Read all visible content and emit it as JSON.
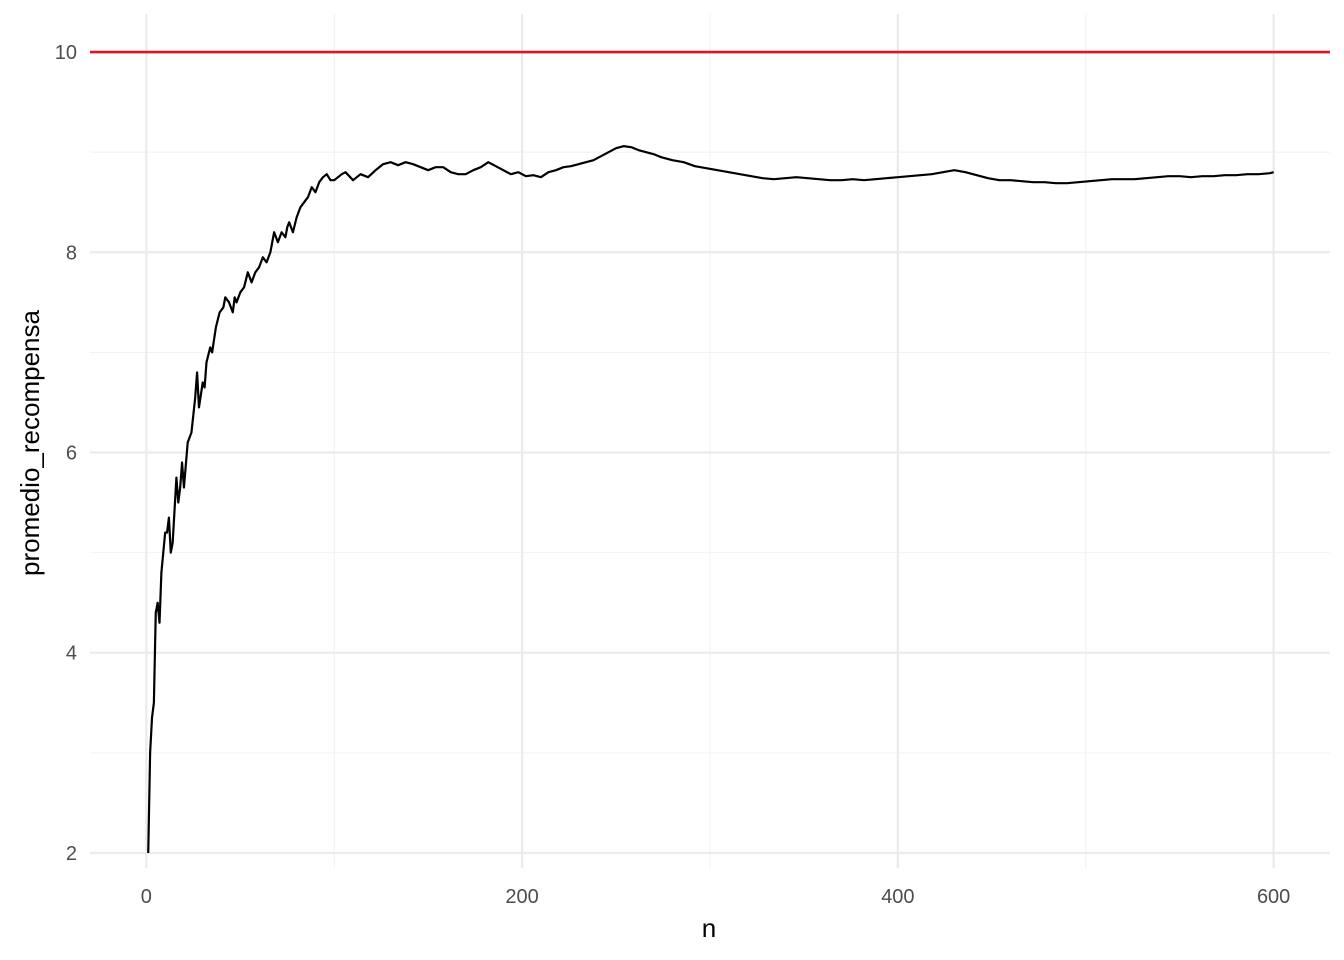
{
  "chart_data": {
    "type": "line",
    "title": "",
    "xlabel": "n",
    "ylabel": "promedio_recompensa",
    "xlim": [
      -30,
      630
    ],
    "ylim": [
      1.85,
      10.38
    ],
    "x_ticks": [
      0,
      200,
      400,
      600
    ],
    "x_tick_labels": [
      "0",
      "200",
      "400",
      "600"
    ],
    "y_ticks": [
      2,
      4,
      6,
      8,
      10
    ],
    "y_tick_labels": [
      "2",
      "4",
      "6",
      "8",
      "10"
    ],
    "grid": true,
    "legend": "none",
    "reference_line": {
      "orientation": "horizontal",
      "y": 10,
      "color": "#e0141e"
    },
    "series": [
      {
        "color": "#000000",
        "x": [
          1,
          2,
          3,
          4,
          5,
          6,
          7,
          8,
          9,
          10,
          11,
          12,
          13,
          14,
          16,
          17,
          18,
          19,
          20,
          22,
          24,
          26,
          27,
          28,
          30,
          31,
          32,
          34,
          35,
          37,
          39,
          41,
          42,
          44,
          46,
          47,
          48,
          50,
          52,
          54,
          56,
          58,
          60,
          62,
          64,
          66,
          68,
          70,
          72,
          74,
          75,
          76,
          78,
          80,
          82,
          84,
          86,
          88,
          90,
          92,
          94,
          96,
          98,
          100,
          104,
          106,
          110,
          114,
          118,
          122,
          126,
          130,
          134,
          138,
          142,
          146,
          150,
          154,
          158,
          162,
          166,
          170,
          174,
          178,
          182,
          186,
          190,
          194,
          198,
          202,
          206,
          210,
          214,
          218,
          222,
          226,
          230,
          234,
          238,
          242,
          246,
          250,
          254,
          258,
          262,
          266,
          270,
          274,
          280,
          286,
          292,
          298,
          304,
          310,
          316,
          322,
          328,
          334,
          340,
          346,
          352,
          358,
          364,
          370,
          376,
          382,
          388,
          394,
          400,
          406,
          412,
          418,
          424,
          430,
          436,
          442,
          448,
          454,
          460,
          466,
          472,
          478,
          484,
          490,
          496,
          502,
          508,
          514,
          520,
          526,
          532,
          538,
          544,
          550,
          556,
          562,
          568,
          574,
          580,
          586,
          592,
          598,
          600
        ],
        "y": [
          2.0,
          3.0,
          3.35,
          3.5,
          4.4,
          4.5,
          4.3,
          4.8,
          5.0,
          5.2,
          5.2,
          5.35,
          5.0,
          5.1,
          5.75,
          5.5,
          5.65,
          5.9,
          5.65,
          6.1,
          6.2,
          6.55,
          6.8,
          6.45,
          6.7,
          6.65,
          6.9,
          7.05,
          7.0,
          7.25,
          7.4,
          7.45,
          7.55,
          7.5,
          7.4,
          7.55,
          7.5,
          7.6,
          7.65,
          7.8,
          7.7,
          7.8,
          7.85,
          7.95,
          7.9,
          8.0,
          8.2,
          8.1,
          8.2,
          8.15,
          8.25,
          8.3,
          8.2,
          8.35,
          8.45,
          8.5,
          8.55,
          8.65,
          8.6,
          8.7,
          8.75,
          8.78,
          8.72,
          8.72,
          8.78,
          8.8,
          8.72,
          8.78,
          8.75,
          8.82,
          8.88,
          8.9,
          8.87,
          8.9,
          8.88,
          8.85,
          8.82,
          8.85,
          8.85,
          8.8,
          8.78,
          8.78,
          8.82,
          8.85,
          8.9,
          8.86,
          8.82,
          8.78,
          8.8,
          8.76,
          8.77,
          8.75,
          8.8,
          8.82,
          8.85,
          8.86,
          8.88,
          8.9,
          8.92,
          8.96,
          9.0,
          9.04,
          9.06,
          9.05,
          9.02,
          9.0,
          8.98,
          8.95,
          8.92,
          8.9,
          8.86,
          8.84,
          8.82,
          8.8,
          8.78,
          8.76,
          8.74,
          8.73,
          8.74,
          8.75,
          8.74,
          8.73,
          8.72,
          8.72,
          8.73,
          8.72,
          8.73,
          8.74,
          8.75,
          8.76,
          8.77,
          8.78,
          8.8,
          8.82,
          8.8,
          8.77,
          8.74,
          8.72,
          8.72,
          8.71,
          8.7,
          8.7,
          8.69,
          8.69,
          8.7,
          8.71,
          8.72,
          8.73,
          8.73,
          8.73,
          8.74,
          8.75,
          8.76,
          8.76,
          8.75,
          8.76,
          8.76,
          8.77,
          8.77,
          8.78,
          8.78,
          8.79,
          8.8
        ]
      }
    ]
  }
}
